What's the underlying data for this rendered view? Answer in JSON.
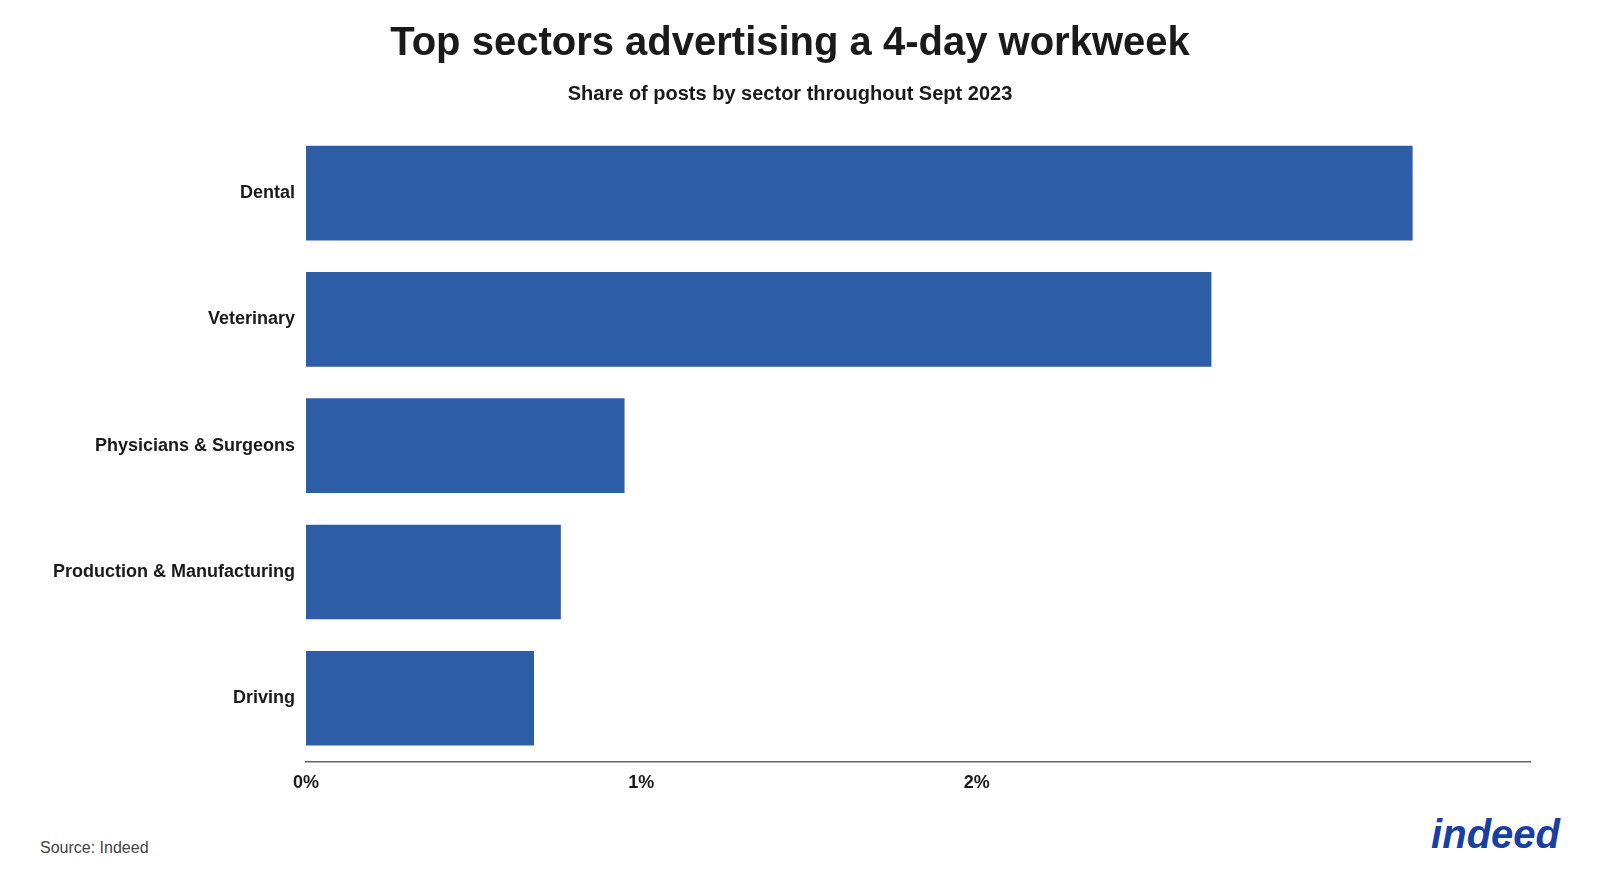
{
  "chart_data": {
    "type": "bar",
    "orientation": "horizontal",
    "title": "Top sectors advertising a 4-day workweek",
    "subtitle": "Share of posts by sector throughout Sept 2023",
    "categories": [
      "Driving",
      "Production & Manufacturing",
      "Physicians & Surgeons",
      "Veterinary",
      "Dental"
    ],
    "values": [
      0.68,
      0.76,
      0.95,
      2.7,
      3.3
    ],
    "color": "#2d5da6",
    "xlim": [
      0,
      3.65
    ],
    "xticks": [
      {
        "value": 0,
        "label": "0%"
      },
      {
        "value": 1,
        "label": "1%"
      },
      {
        "value": 2,
        "label": "2%"
      }
    ],
    "grid": false,
    "annotations": [
      {
        "text": "Source: Indeed"
      },
      {
        "text": "indeed",
        "color": "#1a3fa0"
      }
    ]
  }
}
